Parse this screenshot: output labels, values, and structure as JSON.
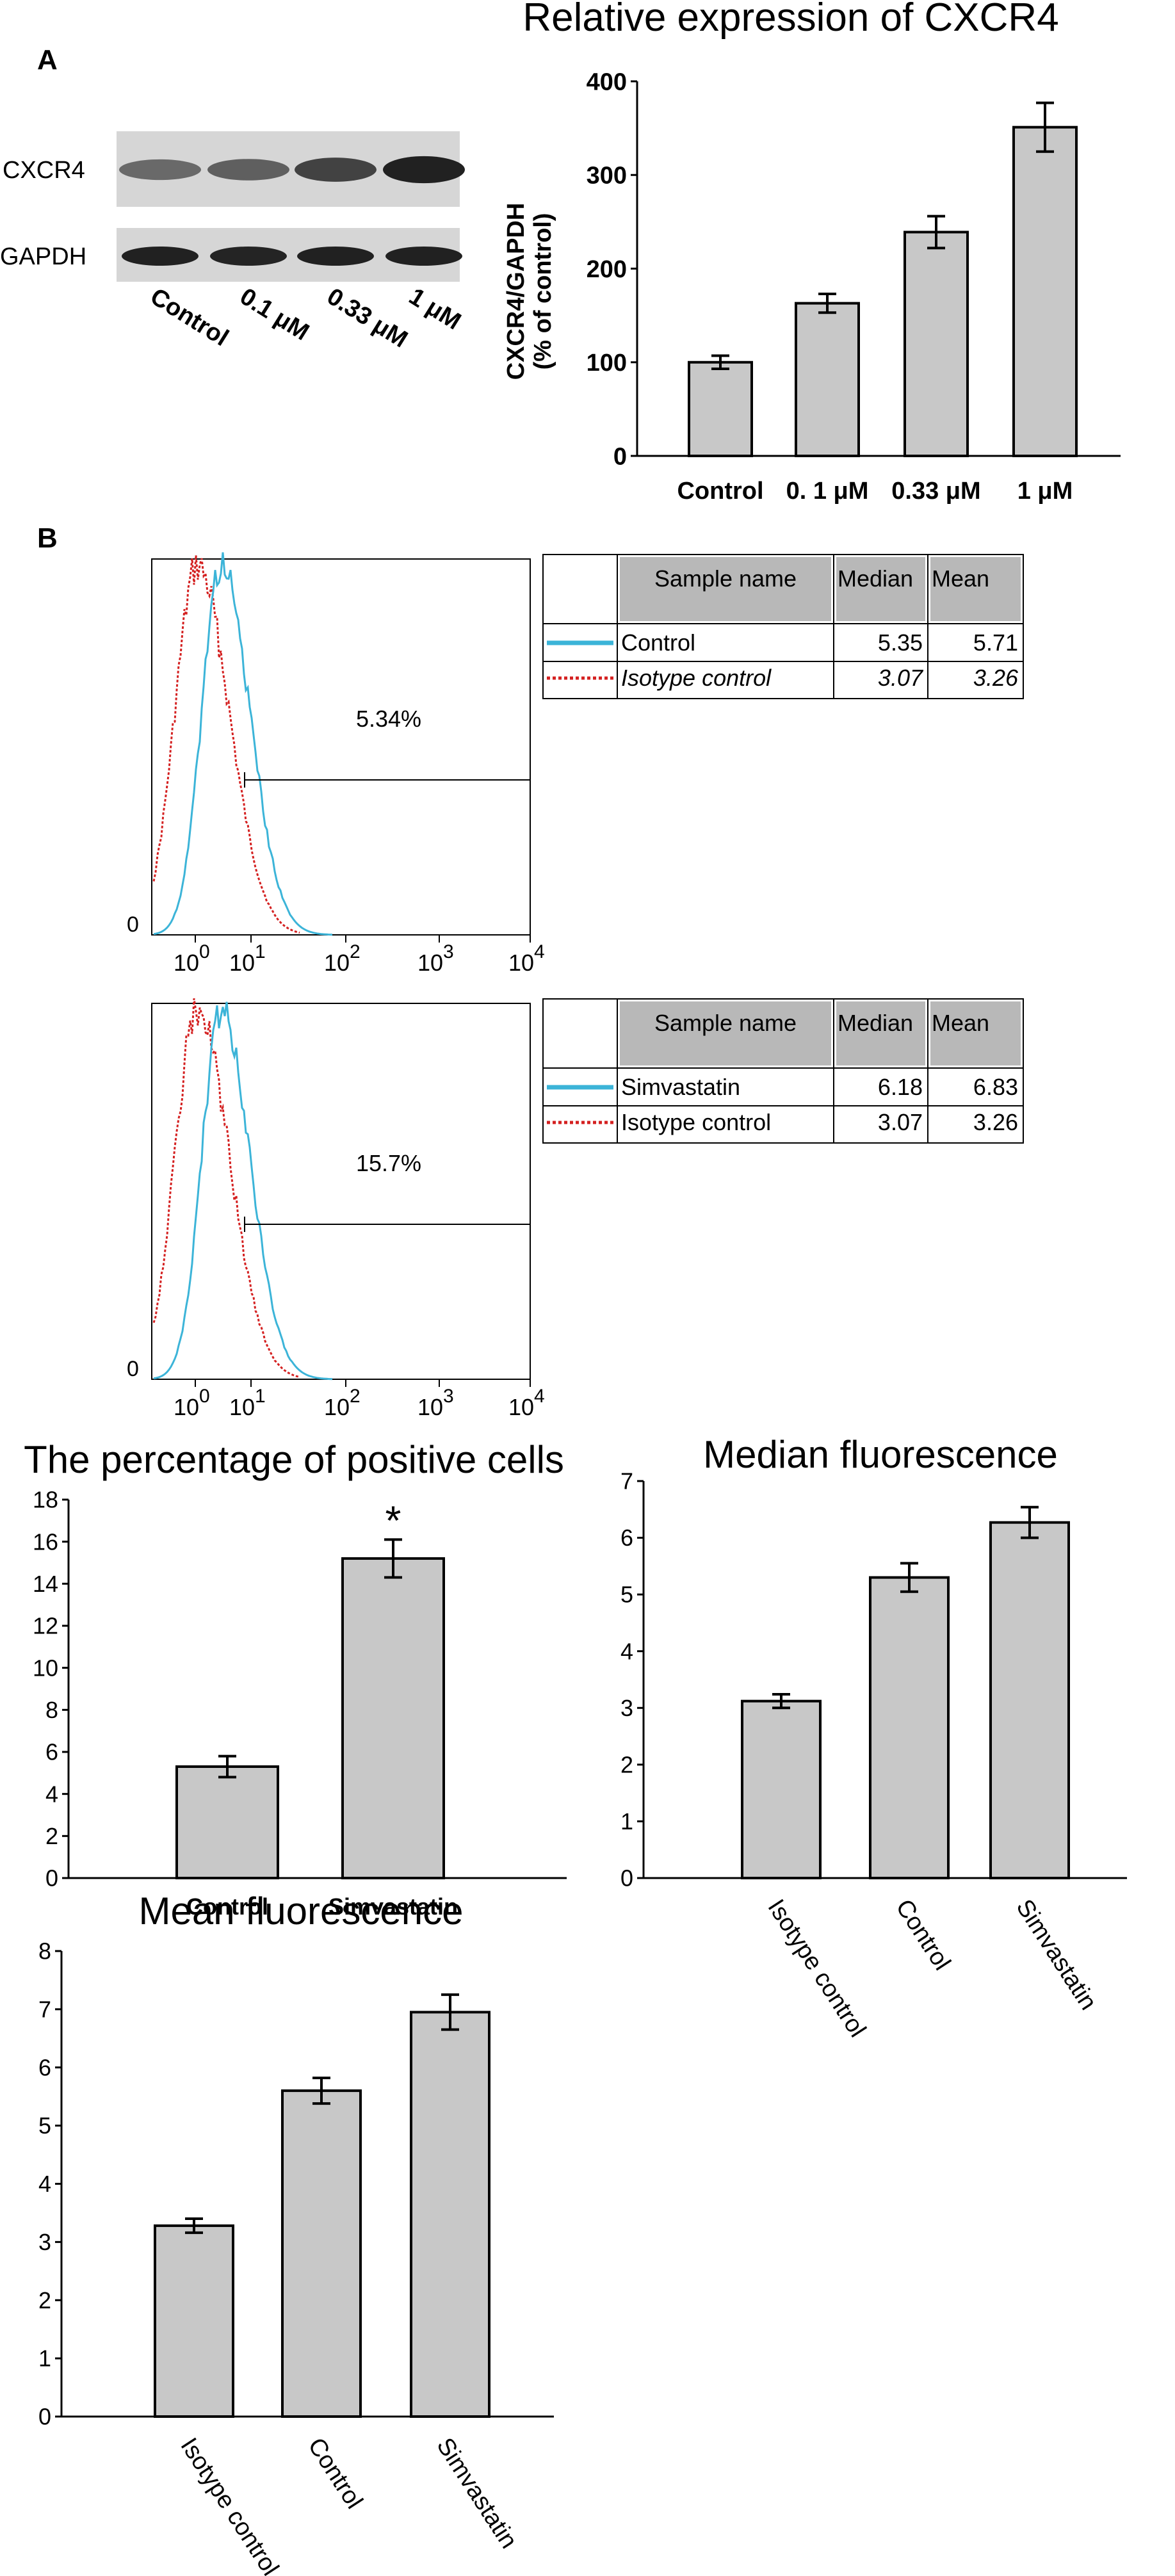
{
  "panels": {
    "a_label": "A",
    "b_label": "B"
  },
  "blot": {
    "lanes": [
      "Control",
      "0.1 μM",
      "0.33 μM",
      "1 μM"
    ],
    "row_labels": [
      "CXCR4",
      "GAPDH"
    ],
    "cxcr4_intensity": [
      0.35,
      0.42,
      0.65,
      0.9
    ],
    "gapdh_intensity": [
      0.9,
      0.88,
      0.9,
      0.9
    ]
  },
  "flow": {
    "x_ticks": [
      {
        "base": "10",
        "exp": "0"
      },
      {
        "base": "10",
        "exp": "1"
      },
      {
        "base": "10",
        "exp": "2"
      },
      {
        "base": "10",
        "exp": "3"
      },
      {
        "base": "10",
        "exp": "4"
      }
    ],
    "y_zero": "0",
    "top": {
      "percent": "5.34%",
      "table": {
        "headers": [
          "Sample name",
          "Median",
          "Mean"
        ],
        "rows": [
          {
            "name": "Control",
            "median": "5.35",
            "mean": "5.71",
            "italic": false
          },
          {
            "name": "Isotype control",
            "median": "3.07",
            "mean": "3.26",
            "italic": true
          }
        ]
      }
    },
    "bottom": {
      "percent": "15.7%",
      "table": {
        "headers": [
          "Sample name",
          "Median",
          "Mean"
        ],
        "rows": [
          {
            "name": "Simvastatin",
            "median": "6.18",
            "mean": "6.83",
            "italic": false
          },
          {
            "name": "Isotype control",
            "median": "3.07",
            "mean": "3.26",
            "italic": false
          }
        ]
      }
    },
    "colors": {
      "sample": "#3cb4d8",
      "isotype": "#d42020"
    }
  },
  "chart_data": [
    {
      "type": "bar",
      "title": "Relative expression of CXCR4",
      "ylabel_line1": "CXCR4/GAPDH",
      "ylabel_line2": "(% of control)",
      "categories": [
        "Control",
        "0. 1 μM",
        "0.33 μM",
        "1 μM"
      ],
      "values": [
        100,
        163,
        239,
        351
      ],
      "errors": [
        7,
        10,
        17,
        26
      ],
      "ylim": [
        0,
        400
      ],
      "yticks": [
        0,
        100,
        200,
        300,
        400
      ],
      "bar_color": "#c8c8c8"
    },
    {
      "type": "bar",
      "title": "The percentage of positive cells",
      "categories": [
        "Control",
        "Simvastatin"
      ],
      "values": [
        5.3,
        15.2
      ],
      "errors": [
        0.5,
        0.9
      ],
      "annotation": "*",
      "ylim": [
        0,
        18
      ],
      "yticks": [
        0,
        2,
        4,
        6,
        8,
        10,
        12,
        14,
        16,
        18
      ],
      "bar_color": "#c8c8c8"
    },
    {
      "type": "bar",
      "title": "Median fluorescence",
      "categories": [
        "Isotype control",
        "Control",
        "Simvastatin"
      ],
      "values": [
        3.12,
        5.3,
        6.27
      ],
      "errors": [
        0.12,
        0.25,
        0.27
      ],
      "ylim": [
        0,
        7
      ],
      "yticks": [
        0,
        1,
        2,
        3,
        4,
        5,
        6,
        7
      ],
      "bar_color": "#c8c8c8"
    },
    {
      "type": "bar",
      "title": "Mean fluorescence",
      "categories": [
        "Isotype control",
        "Control",
        "Simvastatin"
      ],
      "values": [
        3.28,
        5.6,
        6.95
      ],
      "errors": [
        0.12,
        0.22,
        0.3
      ],
      "ylim": [
        0,
        8
      ],
      "yticks": [
        0,
        1,
        2,
        3,
        4,
        5,
        6,
        7,
        8
      ],
      "bar_color": "#c8c8c8"
    }
  ]
}
